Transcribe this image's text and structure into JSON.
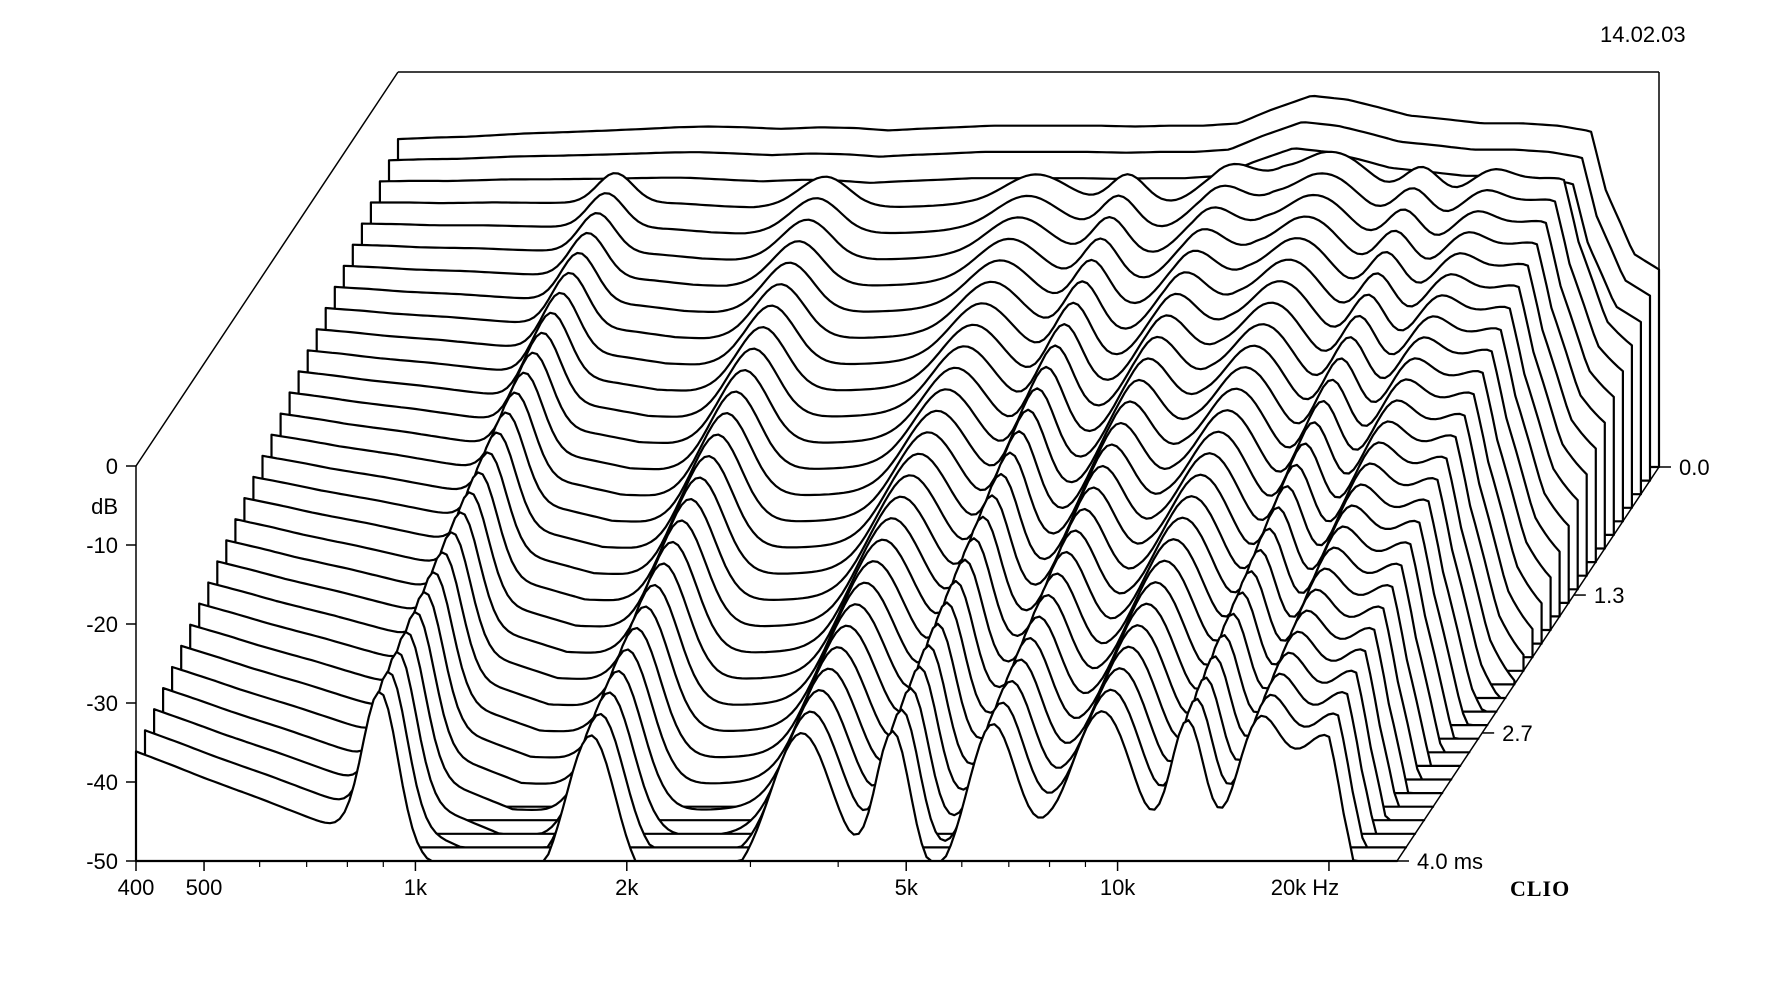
{
  "date": "14.02.03",
  "logo": "CLIO",
  "chart_data": {
    "type": "waterfall",
    "title": "",
    "x_scale": "log",
    "xlim": [
      400,
      25000
    ],
    "ylim": [
      -50,
      0
    ],
    "zlim": [
      0,
      4.0
    ],
    "x_tick_labels": [
      {
        "value": 400,
        "label": "400"
      },
      {
        "value": 500,
        "label": "500"
      },
      {
        "value": 1000,
        "label": "1k"
      },
      {
        "value": 2000,
        "label": "2k"
      },
      {
        "value": 5000,
        "label": "5k"
      },
      {
        "value": 10000,
        "label": "10k"
      },
      {
        "value": 20000,
        "label": "20k Hz"
      }
    ],
    "x_minor_ticks": [
      600,
      700,
      800,
      900,
      3000,
      4000,
      6000,
      7000,
      8000,
      9000
    ],
    "y_tick_labels": [
      {
        "value": 0,
        "label": "0"
      },
      {
        "value": -10,
        "label": "-10"
      },
      {
        "value": -20,
        "label": "-20"
      },
      {
        "value": -30,
        "label": "-30"
      },
      {
        "value": -40,
        "label": "-40"
      },
      {
        "value": -50,
        "label": "-50"
      }
    ],
    "y_unit_label": "dB",
    "z_tick_labels": [
      {
        "value": 0.0,
        "label": "0.0"
      },
      {
        "value": 1.3,
        "label": "1.3"
      },
      {
        "value": 2.7,
        "label": "2.7"
      },
      {
        "value": 4.0,
        "label": "4.0  ms"
      }
    ],
    "slice_count": 30,
    "anchors_hz": [
      400,
      450,
      500,
      550,
      600,
      700,
      800,
      900,
      1000,
      1100,
      1250,
      1400,
      1600,
      1800,
      2000,
      2200,
      2500,
      2800,
      3100,
      3500,
      4000,
      4500,
      5000,
      5600,
      6300,
      7000,
      8000,
      9000,
      10000,
      11000,
      12500,
      14000,
      16000,
      18000,
      20000,
      21000,
      22000,
      23000,
      25000
    ],
    "first_slice_db": [
      -8.5,
      -8.3,
      -8.2,
      -8.0,
      -7.8,
      -7.6,
      -7.4,
      -7.2,
      -7.0,
      -6.9,
      -7.0,
      -7.2,
      -7.0,
      -7.1,
      -7.4,
      -7.2,
      -7.0,
      -6.8,
      -6.8,
      -6.8,
      -6.8,
      -6.9,
      -6.8,
      -6.8,
      -6.5,
      -4.8,
      -3.0,
      -3.5,
      -4.5,
      -5.5,
      -6.0,
      -6.5,
      -6.5,
      -6.8,
      -7.5,
      -15.0,
      -19.0,
      -23.0,
      -25.0
    ]
  }
}
